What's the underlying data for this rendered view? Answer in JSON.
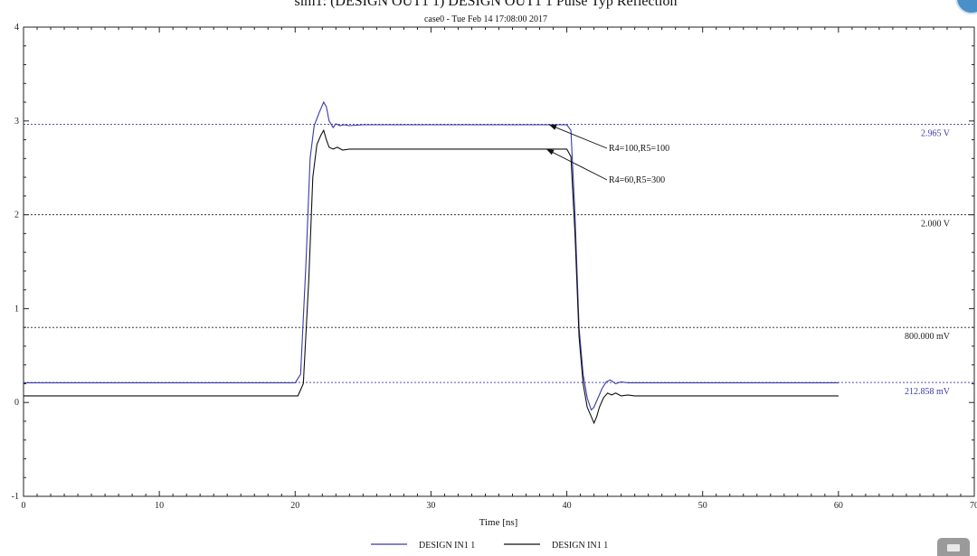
{
  "colors": {
    "blue": "#3a3aa6",
    "black": "#111111",
    "ref_line_blue": "#3a3aa6",
    "ref_line_black": "#222222"
  },
  "icons": [
    "printer-icon",
    "app-logo-icon"
  ],
  "chart_data": {
    "type": "line",
    "title": "sim1: (DESIGN OUT1 1) DESIGN OUT1 1 Pulse Typ Reflection",
    "subtitle": "case0 - Tue Feb 14 17:08:00 2017",
    "xlabel": "Time [ns]",
    "ylabel": "",
    "xlim": [
      0,
      70
    ],
    "ylim": [
      -1,
      4
    ],
    "xticks": [
      0,
      10,
      20,
      30,
      40,
      50,
      60,
      70
    ],
    "yticks": [
      -1,
      0,
      1,
      2,
      3,
      4
    ],
    "grid": false,
    "reference_lines": [
      {
        "y": 2.965,
        "label": "2.965 V",
        "color": "#3a3aa6"
      },
      {
        "y": 2.0,
        "label": "2.000 V",
        "color": "#222222"
      },
      {
        "y": 0.8,
        "label": "800.000 mV",
        "color": "#222222"
      },
      {
        "y": 0.212858,
        "label": "212.858 mV",
        "color": "#3a3aa6"
      }
    ],
    "annotations": [
      {
        "text": "R4=100,R5=100",
        "arrow_to": [
          38.7,
          2.96
        ]
      },
      {
        "text": "R4=60,R5=300",
        "arrow_to": [
          38.5,
          2.7
        ]
      }
    ],
    "legend_position": "bottom-center",
    "series": [
      {
        "name": "DESIGN IN1 1",
        "color": "#3a3aa6",
        "x": [
          0,
          20.0,
          20.4,
          20.8,
          21.1,
          21.4,
          21.8,
          22.1,
          22.3,
          22.5,
          22.8,
          23.0,
          23.3,
          23.6,
          24.0,
          25,
          30,
          35,
          40.0,
          40.3,
          40.6,
          40.9,
          41.2,
          41.5,
          41.8,
          42.0,
          42.3,
          42.6,
          42.9,
          43.2,
          43.6,
          44.0,
          44.5,
          45,
          50,
          55,
          60
        ],
        "y": [
          0.21,
          0.21,
          0.3,
          1.5,
          2.6,
          2.95,
          3.1,
          3.2,
          3.15,
          3.0,
          2.93,
          2.97,
          2.95,
          2.96,
          2.95,
          2.96,
          2.96,
          2.96,
          2.96,
          2.9,
          2.0,
          0.8,
          0.3,
          0.05,
          -0.08,
          -0.05,
          0.05,
          0.15,
          0.22,
          0.24,
          0.2,
          0.22,
          0.21,
          0.21,
          0.21,
          0.21,
          0.21
        ]
      },
      {
        "name": "DESIGN IN1 1",
        "color": "#111111",
        "x": [
          0,
          20.2,
          20.6,
          21.0,
          21.3,
          21.6,
          21.9,
          22.1,
          22.3,
          22.5,
          22.8,
          23.1,
          23.5,
          24.0,
          25,
          30,
          35,
          40.0,
          40.3,
          40.6,
          40.9,
          41.2,
          41.5,
          41.8,
          42.0,
          42.2,
          42.4,
          42.7,
          43.0,
          43.3,
          43.6,
          44.0,
          44.5,
          45,
          50,
          55,
          60
        ],
        "y": [
          0.07,
          0.07,
          0.2,
          1.3,
          2.4,
          2.75,
          2.85,
          2.9,
          2.8,
          2.72,
          2.7,
          2.72,
          2.69,
          2.7,
          2.7,
          2.7,
          2.7,
          2.7,
          2.62,
          1.8,
          0.7,
          0.2,
          -0.05,
          -0.15,
          -0.22,
          -0.15,
          -0.05,
          0.05,
          0.1,
          0.08,
          0.1,
          0.07,
          0.08,
          0.07,
          0.07,
          0.07,
          0.07
        ]
      }
    ]
  }
}
